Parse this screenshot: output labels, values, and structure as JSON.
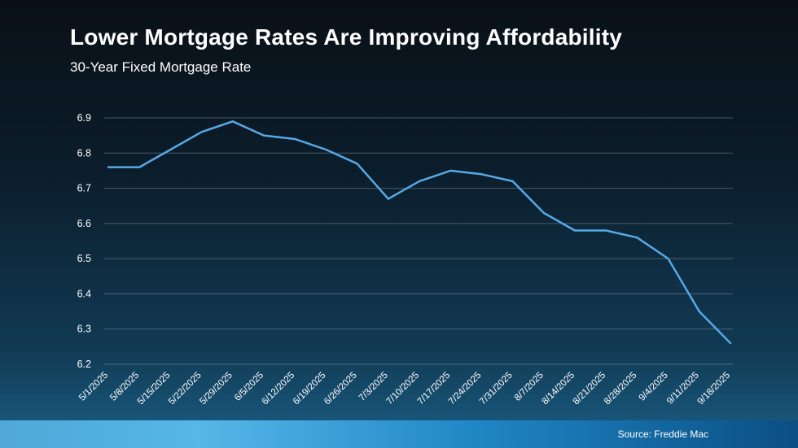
{
  "header": {
    "title": "Lower Mortgage Rates Are Improving Affordability",
    "subtitle": "30-Year Fixed Mortgage Rate"
  },
  "footer": {
    "source_label": "Source: Freddie Mac"
  },
  "colors": {
    "line": "#56a9e6",
    "grid": "#8ea0ad",
    "text": "#ffffff",
    "footer_gradient_left": "#56b7e8",
    "footer_gradient_right": "#0b4e84",
    "background_top": "#0a1016",
    "background_bottom": "#1b5f86"
  },
  "chart_data": {
    "type": "line",
    "title": "Lower Mortgage Rates Are Improving Affordability",
    "subtitle": "30-Year Fixed Mortgage Rate",
    "categories": [
      "5/1/2025",
      "5/8/2025",
      "5/15/2025",
      "5/22/2025",
      "5/29/2025",
      "6/5/2025",
      "6/12/2025",
      "6/19/2025",
      "6/26/2025",
      "7/3/2025",
      "7/10/2025",
      "7/17/2025",
      "7/24/2025",
      "7/31/2025",
      "8/7/2025",
      "8/14/2025",
      "8/21/2025",
      "8/28/2025",
      "9/4/2025",
      "9/11/2025",
      "9/18/2025"
    ],
    "values": [
      6.76,
      6.76,
      6.81,
      6.86,
      6.89,
      6.85,
      6.84,
      6.81,
      6.77,
      6.67,
      6.72,
      6.75,
      6.74,
      6.72,
      6.63,
      6.58,
      6.58,
      6.56,
      6.5,
      6.35,
      6.26
    ],
    "xlabel": "",
    "ylabel": "",
    "ylim": [
      6.2,
      6.9
    ],
    "ytick_step": 0.1,
    "grid": true,
    "legend": false,
    "line_color": "#56a9e6"
  }
}
